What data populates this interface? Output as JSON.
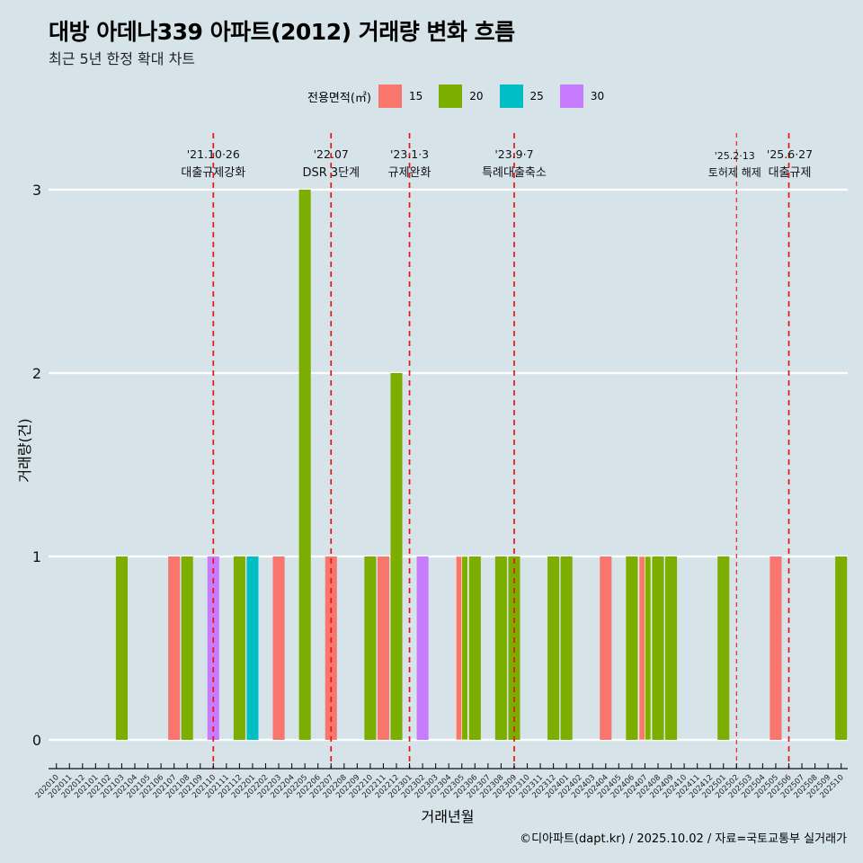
{
  "title": "대방 아데나339 아파트(2012) 거래량 변화 흐름",
  "subtitle": "최근 5년 한정 확대 차트",
  "caption": "©디아파트(dapt.kr) / 2025.10.02 / 자료=국토교통부 실거래가",
  "legend": {
    "title": "전용면적(㎡)",
    "items": [
      {
        "label": "15",
        "color": "#f8766d"
      },
      {
        "label": "20",
        "color": "#7cae00"
      },
      {
        "label": "25",
        "color": "#00bfc4"
      },
      {
        "label": "30",
        "color": "#c77cff"
      }
    ]
  },
  "chart_data": {
    "type": "bar",
    "title": "대방 아데나339 아파트(2012) 거래량 변화 흐름",
    "subtitle": "최근 5년 한정 확대 차트",
    "xlabel": "거래년월",
    "ylabel": "거래량(건)",
    "ylim": [
      0,
      3
    ],
    "yticks": [
      0,
      1,
      2,
      3
    ],
    "grid": "horizontal",
    "legend_position": "top",
    "categories": [
      "202010",
      "202011",
      "202012",
      "202101",
      "202102",
      "202103",
      "202104",
      "202105",
      "202106",
      "202107",
      "202108",
      "202109",
      "202110",
      "202111",
      "202112",
      "202201",
      "202202",
      "202203",
      "202204",
      "202205",
      "202206",
      "202207",
      "202208",
      "202209",
      "202210",
      "202211",
      "202212",
      "202301",
      "202302",
      "202303",
      "202304",
      "202305",
      "202306",
      "202307",
      "202308",
      "202309",
      "202310",
      "202311",
      "202312",
      "202401",
      "202402",
      "202403",
      "202404",
      "202405",
      "202406",
      "202407",
      "202408",
      "202409",
      "202410",
      "202411",
      "202412",
      "202501",
      "202502",
      "202503",
      "202504",
      "202505",
      "202506",
      "202507",
      "202508",
      "202509",
      "202510"
    ],
    "bars": [
      {
        "month": "202103",
        "area": "20",
        "value": 1
      },
      {
        "month": "202107",
        "area": "15",
        "value": 1
      },
      {
        "month": "202108",
        "area": "20",
        "value": 1
      },
      {
        "month": "202110",
        "area": "30",
        "value": 1
      },
      {
        "month": "202112",
        "area": "20",
        "value": 1
      },
      {
        "month": "202201",
        "area": "25",
        "value": 1
      },
      {
        "month": "202203",
        "area": "15",
        "value": 1
      },
      {
        "month": "202205",
        "area": "20",
        "value": 3
      },
      {
        "month": "202207",
        "area": "15",
        "value": 1
      },
      {
        "month": "202210",
        "area": "20",
        "value": 1
      },
      {
        "month": "202211",
        "area": "15",
        "value": 1
      },
      {
        "month": "202212",
        "area": "20",
        "value": 2
      },
      {
        "month": "202302",
        "area": "30",
        "value": 1
      },
      {
        "month": "202305",
        "area": "15",
        "value": 1
      },
      {
        "month": "202305",
        "area": "20",
        "value": 1
      },
      {
        "month": "202306",
        "area": "20",
        "value": 1
      },
      {
        "month": "202308",
        "area": "20",
        "value": 1
      },
      {
        "month": "202309",
        "area": "20",
        "value": 1
      },
      {
        "month": "202312",
        "area": "20",
        "value": 1
      },
      {
        "month": "202401",
        "area": "20",
        "value": 1
      },
      {
        "month": "202404",
        "area": "15",
        "value": 1
      },
      {
        "month": "202406",
        "area": "20",
        "value": 1
      },
      {
        "month": "202407",
        "area": "15",
        "value": 1
      },
      {
        "month": "202407",
        "area": "20",
        "value": 1
      },
      {
        "month": "202408",
        "area": "20",
        "value": 1
      },
      {
        "month": "202409",
        "area": "20",
        "value": 1
      },
      {
        "month": "202501",
        "area": "20",
        "value": 1
      },
      {
        "month": "202505",
        "area": "15",
        "value": 1
      },
      {
        "month": "202510",
        "area": "20",
        "value": 1
      }
    ],
    "annotations": [
      {
        "month": "202110",
        "date": "'21.10·26",
        "label": "대출규제강화",
        "style": "bold"
      },
      {
        "month": "202207",
        "date": "'22.07",
        "label": "DSR 3단계",
        "style": "bold"
      },
      {
        "month": "202301",
        "date": "'23.1·3",
        "label": "규제완화",
        "style": "bold"
      },
      {
        "month": "202309",
        "date": "'23.9·7",
        "label": "특례대출축소",
        "style": "bold"
      },
      {
        "month": "202502",
        "date": "'25.2·13",
        "label": "토허제 해제",
        "style": "thin"
      },
      {
        "month": "202506",
        "date": "'25.6·27",
        "label": "대출규제",
        "style": "bold"
      }
    ],
    "vline_color": "#ee1111"
  }
}
